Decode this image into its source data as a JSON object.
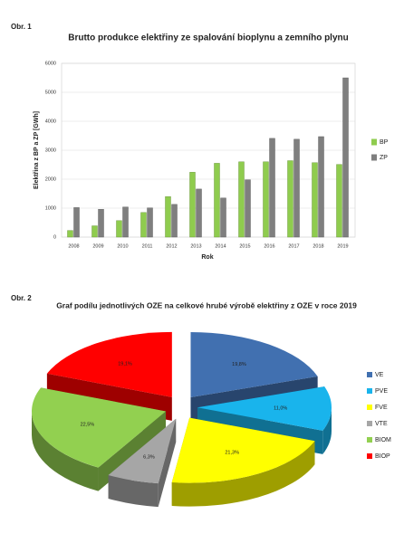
{
  "chart_data": [
    {
      "type": "bar",
      "figure_label": "Obr. 1",
      "title": "Brutto produkce elektřiny ze spalování bioplynu a zemního plynu",
      "y_label": "Elektřina z BP a ZP [GWh]",
      "x_label": "Rok",
      "categories": [
        "2008",
        "2009",
        "2010",
        "2011",
        "2012",
        "2013",
        "2014",
        "2015",
        "2016",
        "2017",
        "2018",
        "2019"
      ],
      "series": [
        {
          "name": "BP",
          "color": "#8fcc4e",
          "values": [
            230,
            390,
            570,
            850,
            1400,
            2240,
            2550,
            2600,
            2600,
            2640,
            2570,
            2510
          ]
        },
        {
          "name": "ZP",
          "color": "#7f7f7f",
          "values": [
            1020,
            960,
            1040,
            1010,
            1130,
            1660,
            1350,
            1980,
            3410,
            3380,
            3470,
            5500
          ]
        }
      ],
      "ylim": [
        0,
        6000
      ],
      "yticks": [
        0,
        1000,
        2000,
        3000,
        4000,
        5000,
        6000
      ],
      "grid": true,
      "legend": "right"
    },
    {
      "type": "pie",
      "figure_label": "Obr. 2",
      "title": "Graf podílu jednotlivých  OZE na celkové hrubé výrobě elektřiny z OZE v roce 2019",
      "categories": [
        "VE",
        "PVE",
        "FVE",
        "VTE",
        "BIOM",
        "BIOP"
      ],
      "values": [
        19.8,
        11.0,
        21.3,
        6.3,
        22.5,
        19.1
      ],
      "value_labels": [
        "19,8%",
        "11,0%",
        "21,3%",
        "6,3%",
        "22,5%",
        "19,1%"
      ],
      "colors": [
        "#4170b0",
        "#19b4ec",
        "#ffff00",
        "#a6a6a6",
        "#92d050",
        "#ff0000"
      ],
      "legend": "right"
    }
  ]
}
